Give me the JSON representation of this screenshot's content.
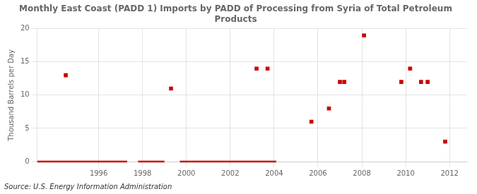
{
  "chart_data": {
    "type": "scatter",
    "title": "Monthly East Coast (PADD 1) Imports by PADD of Processing from Syria of Total Petroleum\nProducts",
    "ylabel": "Thousand Barrels per Day",
    "source": "Source: U.S. Energy Information Administration",
    "color": "#cc0000",
    "marker": "square",
    "x": [
      1994.5,
      1999.3,
      2003.2,
      2003.7,
      2005.7,
      2006.5,
      2007.0,
      2007.2,
      2008.1,
      2009.8,
      2010.2,
      2010.7,
      2011.0,
      2011.8
    ],
    "values": [
      13,
      11,
      14,
      14,
      6,
      8,
      12,
      12,
      19,
      12,
      14,
      12,
      12,
      3
    ],
    "zero_segments": [
      [
        1993.2,
        1997.3
      ],
      [
        1997.8,
        1999.0
      ],
      [
        1999.7,
        2004.1
      ]
    ],
    "xlim": [
      1993.2,
      2012.8
    ],
    "xticks": [
      1996,
      1998,
      2000,
      2002,
      2004,
      2006,
      2008,
      2010,
      2012
    ],
    "ylim": [
      0,
      20
    ],
    "yticks": [
      0,
      5,
      10,
      15,
      20
    ],
    "grid": true
  }
}
